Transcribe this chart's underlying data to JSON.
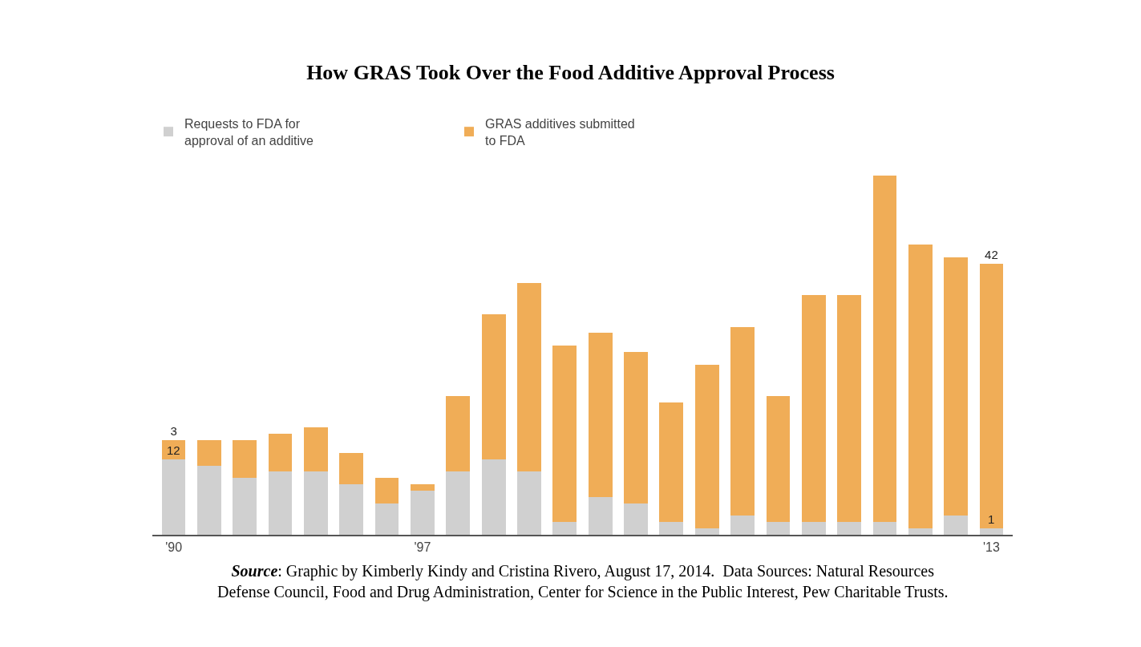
{
  "chart_data": {
    "type": "bar",
    "title": "How GRAS Took Over the Food Additive Approval Process",
    "categories": [
      "'90",
      null,
      null,
      null,
      null,
      null,
      null,
      "'97",
      null,
      null,
      null,
      null,
      null,
      null,
      null,
      null,
      null,
      null,
      null,
      null,
      null,
      null,
      null,
      "'13"
    ],
    "stacked": true,
    "legend": "top left",
    "series": [
      {
        "name": "Requests to FDA for approval of an additive",
        "color": "#d0d0d0",
        "values": [
          12,
          11,
          9,
          10,
          10,
          8,
          5,
          7,
          10,
          12,
          10,
          2,
          6,
          5,
          2,
          1,
          3,
          2,
          2,
          2,
          2,
          1,
          3,
          1
        ],
        "value_labels": [
          "12",
          null,
          null,
          null,
          null,
          null,
          null,
          null,
          null,
          null,
          null,
          null,
          null,
          null,
          null,
          null,
          null,
          null,
          null,
          null,
          null,
          null,
          null,
          "1"
        ]
      },
      {
        "name": "GRAS additives submitted to FDA",
        "color": "#f0ad57",
        "values": [
          3,
          4,
          6,
          6,
          7,
          5,
          4,
          1,
          12,
          23,
          30,
          28,
          26,
          24,
          19,
          26,
          30,
          20,
          36,
          36,
          55,
          45,
          41,
          42
        ],
        "value_labels": [
          "3",
          null,
          null,
          null,
          null,
          null,
          null,
          null,
          null,
          null,
          null,
          null,
          null,
          null,
          null,
          null,
          null,
          null,
          null,
          null,
          null,
          null,
          null,
          "42"
        ]
      }
    ],
    "annotations": [
      "Source: Graphic by Kimberly Kindy and Cristina Rivero, August 17, 2014.  Data Sources: Natural Resources Defense Council, Food and Drug Administration, Center for Science in the Public Interest, Pew Charitable Trusts."
    ]
  }
}
